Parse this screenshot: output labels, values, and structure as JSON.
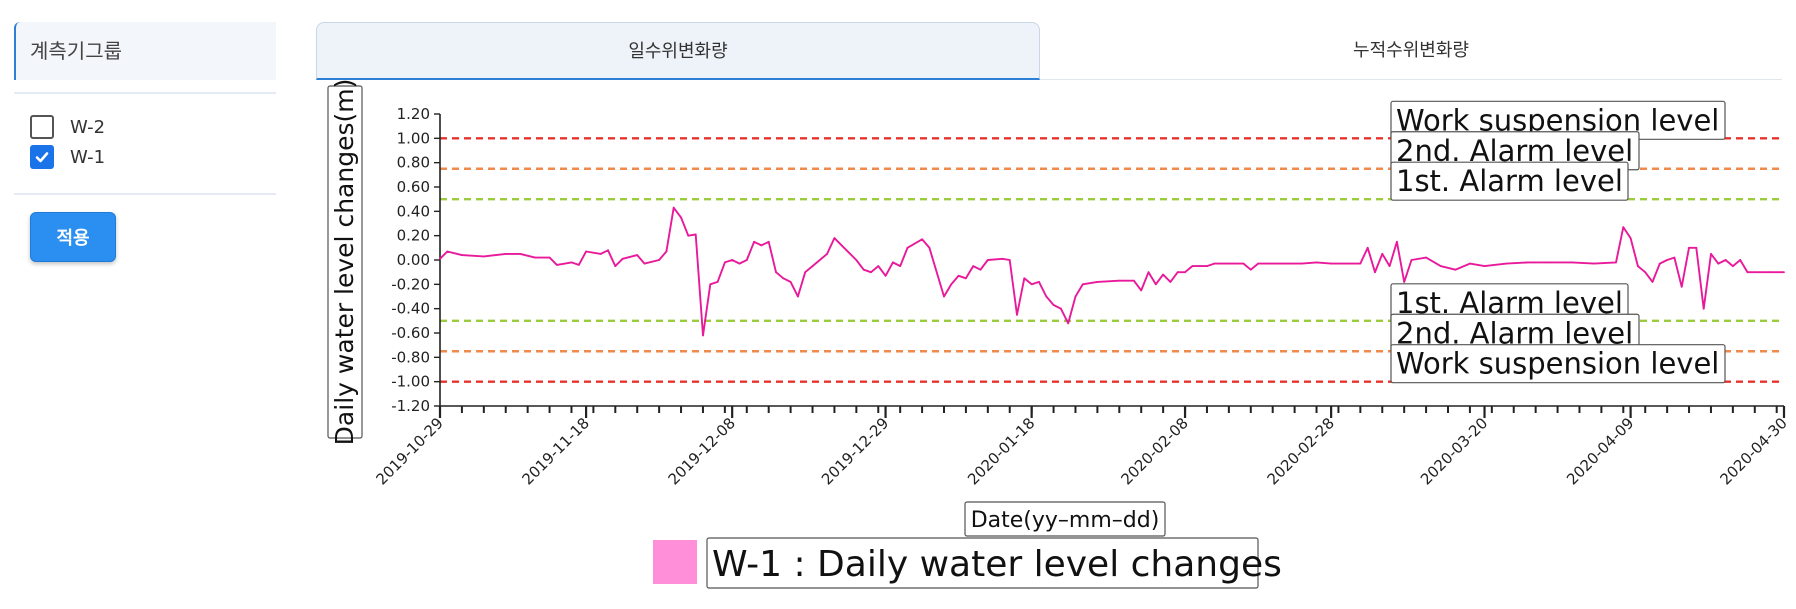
{
  "sidebar": {
    "group_title": "계측기그룹",
    "instruments": [
      {
        "label": "W-2",
        "checked": false
      },
      {
        "label": "W-1",
        "checked": true
      }
    ],
    "apply_label": "적용",
    "accent_color": "#2a8ff0"
  },
  "tabs": [
    {
      "label": "일수위변화량",
      "active": true
    },
    {
      "label": "누적수위변화량",
      "active": false
    }
  ],
  "chart_data": {
    "type": "line",
    "title": "",
    "ylabel": "Daily water level changes(m)",
    "xlabel": "Date(yy–mm–dd)",
    "ylim": [
      -1.2,
      1.2
    ],
    "xlim": [
      "2019-10-29",
      "2020-04-30"
    ],
    "y_ticks": [
      "1.20",
      "1.00",
      "0.80",
      "0.60",
      "0.40",
      "0.20",
      "0.00",
      "-0.20",
      "-0.40",
      "-0.60",
      "-0.80",
      "-1.00",
      "-1.20"
    ],
    "x_ticks": [
      "2019-10-29",
      "2019-11-18",
      "2019-12-08",
      "2019-12-29",
      "2020-01-18",
      "2020-02-08",
      "2020-02-28",
      "2020-03-20",
      "2020-04-09",
      "2020-04-30"
    ],
    "grid": false,
    "legend_position": "bottom-center",
    "reference_lines": [
      {
        "label": "Work suspension level",
        "value": 1.0,
        "color": "#e8332c"
      },
      {
        "label": "2nd. Alarm level",
        "value": 0.75,
        "color": "#f08a4b"
      },
      {
        "label": "1st.  Alarm level",
        "value": 0.5,
        "color": "#9ccc3d"
      },
      {
        "label": "1st.  Alarm level",
        "value": -0.5,
        "color": "#9ccc3d"
      },
      {
        "label": "2nd. Alarm level",
        "value": -0.75,
        "color": "#f08a4b"
      },
      {
        "label": "Work suspension level",
        "value": -1.0,
        "color": "#e8332c"
      }
    ],
    "series": [
      {
        "name": "W-1 : Daily water level changes",
        "color": "#e8199a",
        "legend_color": "#ff8fd8",
        "points": [
          [
            "2019-10-29",
            0.01
          ],
          [
            "2019-10-30",
            0.07
          ],
          [
            "2019-11-01",
            0.04
          ],
          [
            "2019-11-04",
            0.03
          ],
          [
            "2019-11-07",
            0.05
          ],
          [
            "2019-11-09",
            0.05
          ],
          [
            "2019-11-11",
            0.02
          ],
          [
            "2019-11-13",
            0.02
          ],
          [
            "2019-11-14",
            -0.04
          ],
          [
            "2019-11-16",
            -0.02
          ],
          [
            "2019-11-17",
            -0.04
          ],
          [
            "2019-11-18",
            0.07
          ],
          [
            "2019-11-20",
            0.05
          ],
          [
            "2019-11-21",
            0.08
          ],
          [
            "2019-11-22",
            -0.05
          ],
          [
            "2019-11-23",
            0.01
          ],
          [
            "2019-11-25",
            0.04
          ],
          [
            "2019-11-26",
            -0.03
          ],
          [
            "2019-11-28",
            0.0
          ],
          [
            "2019-11-29",
            0.07
          ],
          [
            "2019-11-30",
            0.43
          ],
          [
            "2019-12-01",
            0.35
          ],
          [
            "2019-12-02",
            0.2
          ],
          [
            "2019-12-03",
            0.21
          ],
          [
            "2019-12-04",
            -0.62
          ],
          [
            "2019-12-05",
            -0.2
          ],
          [
            "2019-12-06",
            -0.18
          ],
          [
            "2019-12-07",
            -0.02
          ],
          [
            "2019-12-08",
            0.0
          ],
          [
            "2019-12-09",
            -0.03
          ],
          [
            "2019-12-10",
            0.0
          ],
          [
            "2019-12-11",
            0.15
          ],
          [
            "2019-12-12",
            0.12
          ],
          [
            "2019-12-13",
            0.15
          ],
          [
            "2019-12-14",
            -0.1
          ],
          [
            "2019-12-15",
            -0.15
          ],
          [
            "2019-12-16",
            -0.18
          ],
          [
            "2019-12-17",
            -0.3
          ],
          [
            "2019-12-18",
            -0.1
          ],
          [
            "2019-12-19",
            -0.05
          ],
          [
            "2019-12-21",
            0.05
          ],
          [
            "2019-12-22",
            0.18
          ],
          [
            "2019-12-23",
            0.12
          ],
          [
            "2019-12-25",
            0.0
          ],
          [
            "2019-12-26",
            -0.08
          ],
          [
            "2019-12-27",
            -0.1
          ],
          [
            "2019-12-28",
            -0.05
          ],
          [
            "2019-12-29",
            -0.13
          ],
          [
            "2019-12-30",
            -0.02
          ],
          [
            "2019-12-31",
            -0.05
          ],
          [
            "2020-01-01",
            0.1
          ],
          [
            "2020-01-03",
            0.17
          ],
          [
            "2020-01-04",
            0.1
          ],
          [
            "2020-01-06",
            -0.3
          ],
          [
            "2020-01-07",
            -0.2
          ],
          [
            "2020-01-08",
            -0.13
          ],
          [
            "2020-01-09",
            -0.15
          ],
          [
            "2020-01-10",
            -0.05
          ],
          [
            "2020-01-11",
            -0.08
          ],
          [
            "2020-01-12",
            0.0
          ],
          [
            "2020-01-14",
            0.01
          ],
          [
            "2020-01-15",
            0.0
          ],
          [
            "2020-01-16",
            -0.45
          ],
          [
            "2020-01-17",
            -0.15
          ],
          [
            "2020-01-18",
            -0.2
          ],
          [
            "2020-01-19",
            -0.18
          ],
          [
            "2020-01-20",
            -0.3
          ],
          [
            "2020-01-21",
            -0.37
          ],
          [
            "2020-01-22",
            -0.4
          ],
          [
            "2020-01-23",
            -0.52
          ],
          [
            "2020-01-24",
            -0.3
          ],
          [
            "2020-01-25",
            -0.2
          ],
          [
            "2020-01-27",
            -0.18
          ],
          [
            "2020-01-30",
            -0.17
          ],
          [
            "2020-02-01",
            -0.17
          ],
          [
            "2020-02-02",
            -0.25
          ],
          [
            "2020-02-03",
            -0.1
          ],
          [
            "2020-02-04",
            -0.2
          ],
          [
            "2020-02-05",
            -0.12
          ],
          [
            "2020-02-06",
            -0.18
          ],
          [
            "2020-02-07",
            -0.1
          ],
          [
            "2020-02-08",
            -0.1
          ],
          [
            "2020-02-09",
            -0.05
          ],
          [
            "2020-02-11",
            -0.05
          ],
          [
            "2020-02-12",
            -0.03
          ],
          [
            "2020-02-14",
            -0.03
          ],
          [
            "2020-02-16",
            -0.03
          ],
          [
            "2020-02-17",
            -0.08
          ],
          [
            "2020-02-18",
            -0.03
          ],
          [
            "2020-02-21",
            -0.03
          ],
          [
            "2020-02-24",
            -0.03
          ],
          [
            "2020-02-26",
            -0.02
          ],
          [
            "2020-02-28",
            -0.03
          ],
          [
            "2020-03-01",
            -0.03
          ],
          [
            "2020-03-03",
            -0.03
          ],
          [
            "2020-03-04",
            0.1
          ],
          [
            "2020-03-05",
            -0.1
          ],
          [
            "2020-03-06",
            0.05
          ],
          [
            "2020-03-07",
            -0.05
          ],
          [
            "2020-03-08",
            0.15
          ],
          [
            "2020-03-09",
            -0.18
          ],
          [
            "2020-03-10",
            0.0
          ],
          [
            "2020-03-12",
            0.02
          ],
          [
            "2020-03-14",
            -0.05
          ],
          [
            "2020-03-16",
            -0.08
          ],
          [
            "2020-03-18",
            -0.03
          ],
          [
            "2020-03-20",
            -0.05
          ],
          [
            "2020-03-23",
            -0.03
          ],
          [
            "2020-03-26",
            -0.02
          ],
          [
            "2020-03-29",
            -0.02
          ],
          [
            "2020-04-01",
            -0.02
          ],
          [
            "2020-04-04",
            -0.03
          ],
          [
            "2020-04-07",
            -0.02
          ],
          [
            "2020-04-08",
            0.27
          ],
          [
            "2020-04-09",
            0.18
          ],
          [
            "2020-04-10",
            -0.05
          ],
          [
            "2020-04-11",
            -0.1
          ],
          [
            "2020-04-12",
            -0.18
          ],
          [
            "2020-04-13",
            -0.03
          ],
          [
            "2020-04-14",
            0.0
          ],
          [
            "2020-04-15",
            0.02
          ],
          [
            "2020-04-16",
            -0.22
          ],
          [
            "2020-04-17",
            0.1
          ],
          [
            "2020-04-18",
            0.1
          ],
          [
            "2020-04-19",
            -0.4
          ],
          [
            "2020-04-20",
            0.05
          ],
          [
            "2020-04-21",
            -0.03
          ],
          [
            "2020-04-22",
            0.0
          ],
          [
            "2020-04-23",
            -0.05
          ],
          [
            "2020-04-24",
            0.0
          ],
          [
            "2020-04-25",
            -0.1
          ],
          [
            "2020-04-26",
            -0.1
          ],
          [
            "2020-04-28",
            -0.1
          ],
          [
            "2020-04-30",
            -0.1
          ]
        ]
      }
    ]
  }
}
